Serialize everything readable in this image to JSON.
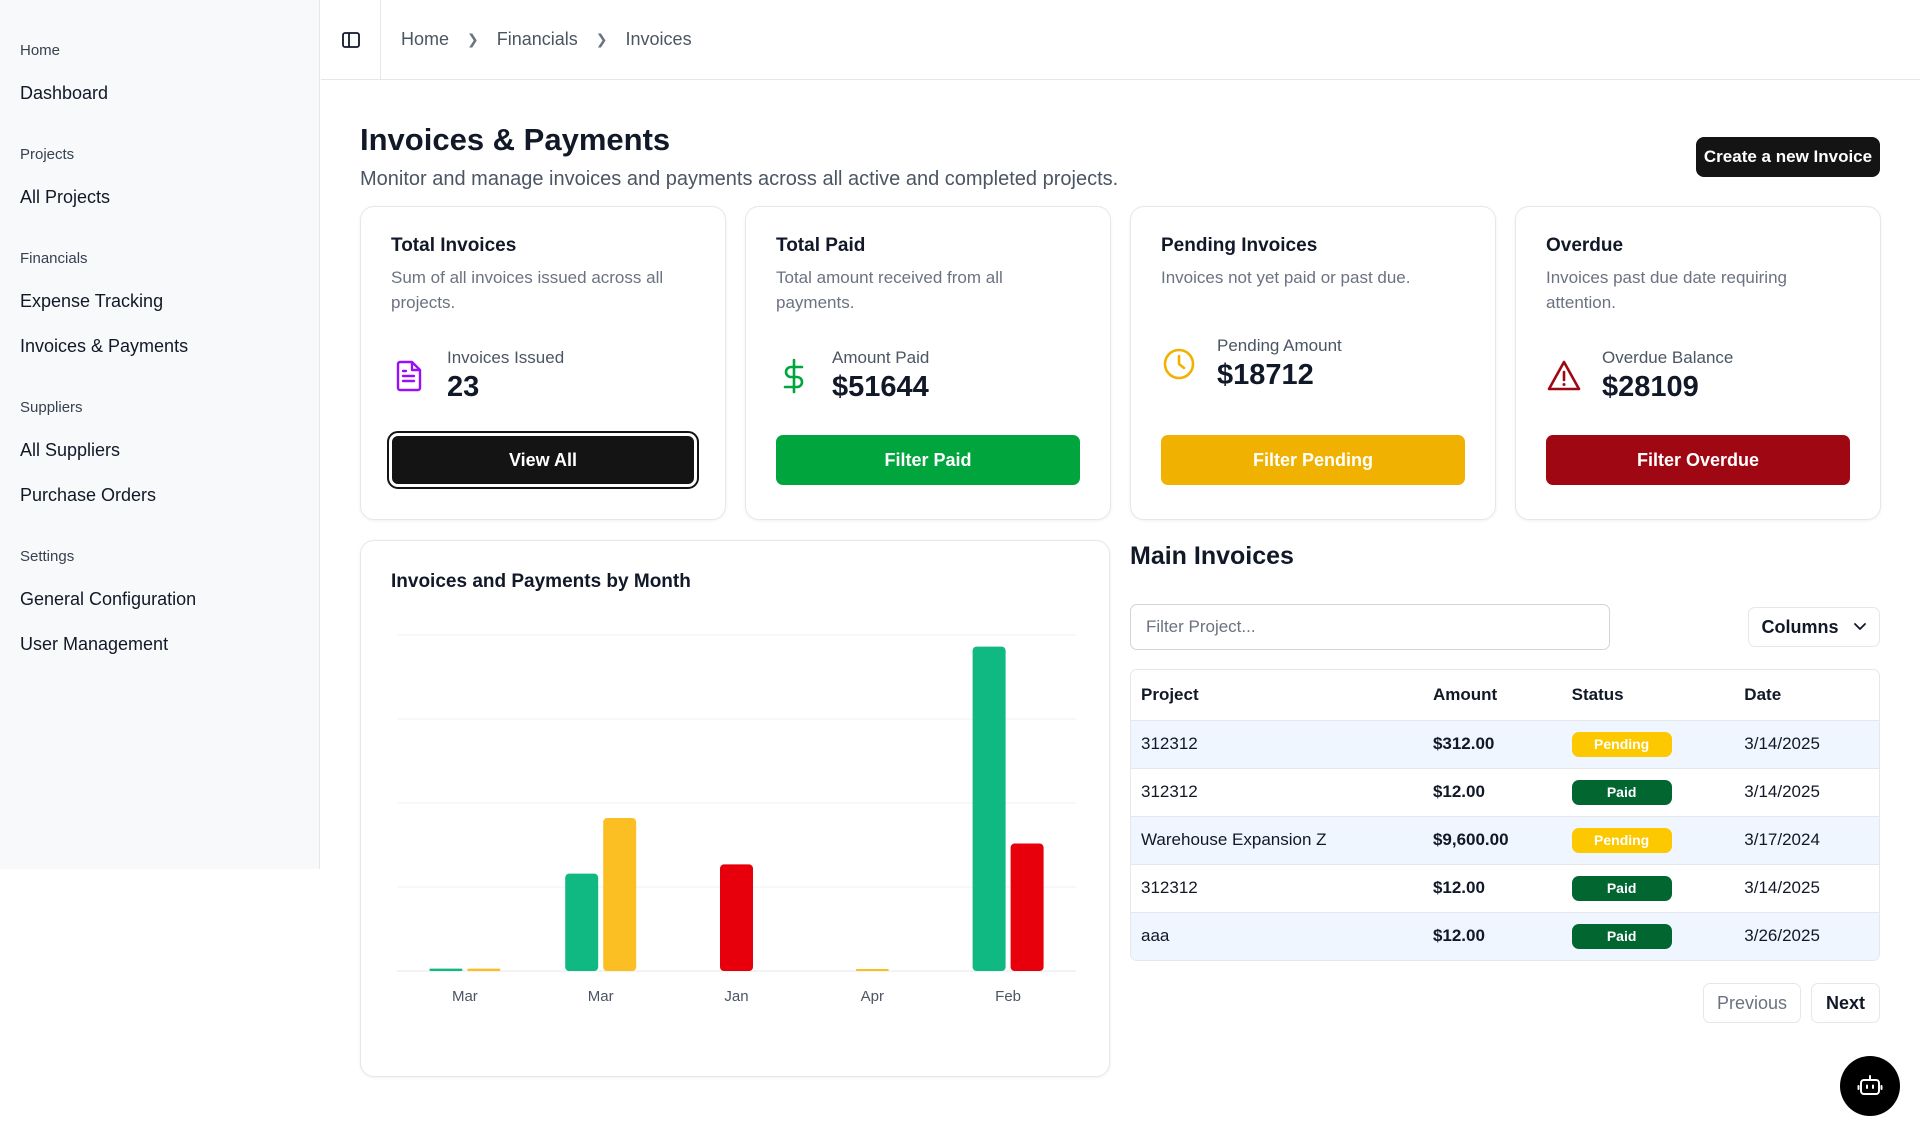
{
  "sidebar": {
    "groups": [
      {
        "label": "Home",
        "items": [
          "Dashboard"
        ]
      },
      {
        "label": "Projects",
        "items": [
          "All Projects"
        ]
      },
      {
        "label": "Financials",
        "items": [
          "Expense Tracking",
          "Invoices & Payments"
        ]
      },
      {
        "label": "Suppliers",
        "items": [
          "All Suppliers",
          "Purchase Orders"
        ]
      },
      {
        "label": "Settings",
        "items": [
          "General Configuration",
          "User Management"
        ]
      }
    ]
  },
  "header": {
    "toggle_icon": "sidebar-toggle-icon",
    "breadcrumb": [
      "Home",
      "Financials",
      "Invoices"
    ]
  },
  "page": {
    "title": "Invoices & Payments",
    "subtitle": "Monitor and manage invoices and payments across all active and completed projects.",
    "create_button": "Create a new Invoice"
  },
  "cards": [
    {
      "title": "Total Invoices",
      "desc": "Sum of all invoices issued across all projects.",
      "metric_label": "Invoices Issued",
      "metric_value": "23",
      "button": "View All",
      "icon": "file-text-icon",
      "color": "#9810fa"
    },
    {
      "title": "Total Paid",
      "desc": "Total amount received from all payments.",
      "metric_label": "Amount Paid",
      "metric_value": "$51644",
      "button": "Filter Paid",
      "icon": "dollar-icon",
      "color": "#00a63d"
    },
    {
      "title": "Pending Invoices",
      "desc": "Invoices not yet paid or past due.",
      "metric_label": "Pending Amount",
      "metric_value": "$18712",
      "button": "Filter Pending",
      "icon": "clock-icon",
      "color": "#f0b100"
    },
    {
      "title": "Overdue",
      "desc": "Invoices past due date requiring attention.",
      "metric_label": "Overdue Balance",
      "metric_value": "$28109",
      "button": "Filter Overdue",
      "icon": "alert-triangle-icon",
      "color": "#9f0712"
    }
  ],
  "chart_data": {
    "type": "bar",
    "title": "Invoices and Payments by Month",
    "categories": [
      "Mar",
      "Mar",
      "Jan",
      "Apr",
      "Feb"
    ],
    "series": [
      {
        "color": "#10b981",
        "values": [
          1,
          42,
          0,
          0,
          140
        ]
      },
      {
        "color": "#fbbf24",
        "values": [
          1,
          66,
          0,
          0.5,
          0
        ]
      },
      {
        "color": "#e7000b",
        "values": [
          0,
          0,
          46,
          0,
          55
        ]
      }
    ],
    "ylim": [
      0,
      145
    ],
    "grid": true,
    "legend": "none"
  },
  "table": {
    "title": "Main Invoices",
    "filter_placeholder": "Filter Project...",
    "columns_button": "Columns",
    "headers": [
      "Project",
      "Amount",
      "Status",
      "Date"
    ],
    "rows": [
      {
        "project": "312312",
        "amount": "$312.00",
        "status": "Pending",
        "date": "3/14/2025"
      },
      {
        "project": "312312",
        "amount": "$12.00",
        "status": "Paid",
        "date": "3/14/2025"
      },
      {
        "project": "Warehouse Expansion Z",
        "amount": "$9,600.00",
        "status": "Pending",
        "date": "3/17/2024"
      },
      {
        "project": "312312",
        "amount": "$12.00",
        "status": "Paid",
        "date": "3/14/2025"
      },
      {
        "project": "aaa",
        "amount": "$12.00",
        "status": "Paid",
        "date": "3/26/2025"
      }
    ],
    "prev_button": "Previous",
    "next_button": "Next"
  },
  "fab": {
    "icon": "bot-icon"
  }
}
